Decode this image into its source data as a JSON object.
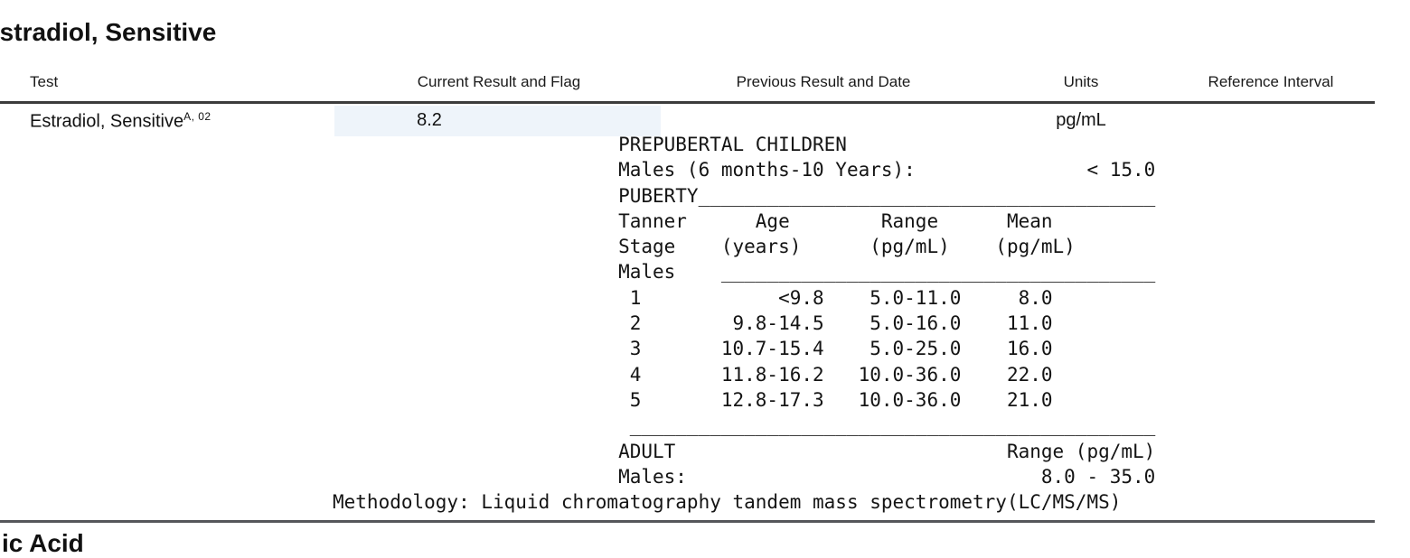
{
  "page": {
    "title": "Estradiol, Sensitive",
    "footer_section_title": "ic Acid"
  },
  "colors": {
    "result_highlight": "#eef4fa",
    "header_rule": "#3c3c3c",
    "section_rule": "#55565a"
  },
  "results_table": {
    "columns": {
      "test": "Test",
      "current": "Current Result and Flag",
      "previous": "Previous Result and Date",
      "units": "Units",
      "reference": "Reference Interval"
    },
    "row": {
      "test_name": "Estradiol, Sensitive",
      "test_footnote": "A, 02",
      "current_result": "8.2",
      "previous_result": "",
      "units": "pg/mL",
      "reference_interval": ""
    }
  },
  "reference_block": {
    "prepubertal_limit": "< 15.0",
    "adult_male_range": "8.0 - 35.0",
    "tanner_stages": [
      {
        "stage": "1",
        "age_years": "<9.8",
        "range_pg_ml": "5.0-11.0",
        "mean_pg_ml": "8.0"
      },
      {
        "stage": "2",
        "age_years": "9.8-14.5",
        "range_pg_ml": "5.0-16.0",
        "mean_pg_ml": "11.0"
      },
      {
        "stage": "3",
        "age_years": "10.7-15.4",
        "range_pg_ml": "5.0-25.0",
        "mean_pg_ml": "16.0"
      },
      {
        "stage": "4",
        "age_years": "11.8-16.2",
        "range_pg_ml": "10.0-36.0",
        "mean_pg_ml": "22.0"
      },
      {
        "stage": "5",
        "age_years": "12.8-17.3",
        "range_pg_ml": "10.0-36.0",
        "mean_pg_ml": "21.0"
      }
    ],
    "methodology": "Liquid chromatography tandem mass spectrometry(LC/MS/MS)",
    "lines": [
      "                         PREPUBERTAL CHILDREN",
      "                         Males (6 months-10 Years):               < 15.0",
      "                         PUBERTY________________________________________",
      "                         Tanner      Age        Range      Mean",
      "                         Stage    (years)      (pg/mL)    (pg/mL)",
      "                         Males    ______________________________________",
      "                          1            <9.8    5.0-11.0     8.0",
      "                          2        9.8-14.5    5.0-16.0    11.0",
      "                          3       10.7-15.4    5.0-25.0    16.0",
      "                          4       11.8-16.2   10.0-36.0    22.0",
      "                          5       12.8-17.3   10.0-36.0    21.0",
      "                          ______________________________________________",
      "                         ADULT                             Range (pg/mL)",
      "                         Males:                               8.0 - 35.0",
      "Methodology: Liquid chromatography tandem mass spectrometry(LC/MS/MS)"
    ]
  }
}
